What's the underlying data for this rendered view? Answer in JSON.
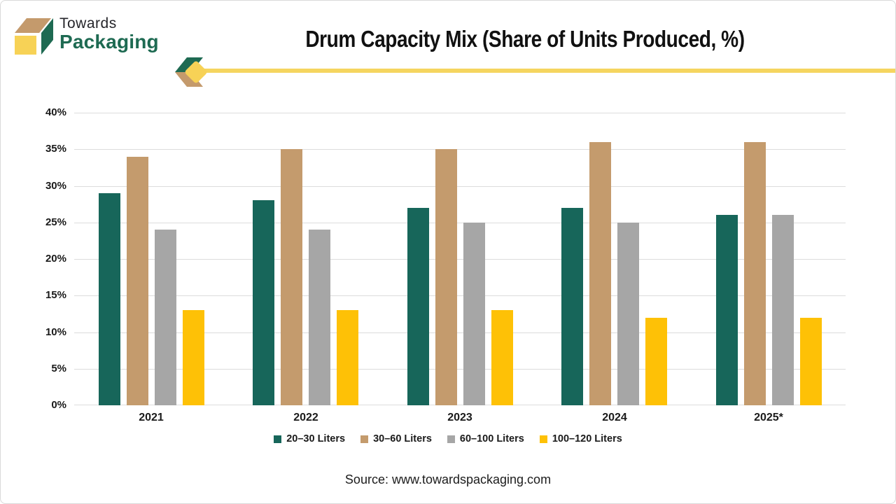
{
  "brand": {
    "line1": "Towards",
    "line2": "Packaging"
  },
  "header": {
    "title": "Drum Capacity Mix (Share of Units Produced, %)"
  },
  "footer": {
    "source": "Source: www.towardspackaging.com"
  },
  "colors": {
    "brand_green": "#1E6A52",
    "brand_tan": "#C49A6C",
    "brand_yellow": "#F7D256",
    "rule_yellow": "#F5D55F",
    "axis_text": "#1a1a1a",
    "gridline": "#dcdcdc"
  },
  "chart_data": {
    "type": "bar",
    "title": "Drum Capacity Mix (Share of Units Produced, %)",
    "categories": [
      "2021",
      "2022",
      "2023",
      "2024",
      "2025*"
    ],
    "series": [
      {
        "name": "20–30 Liters",
        "color": "#17665A",
        "values": [
          29,
          28,
          27,
          27,
          26
        ]
      },
      {
        "name": "30–60 Liters",
        "color": "#C49B6D",
        "values": [
          34,
          35,
          35,
          36,
          36
        ]
      },
      {
        "name": "60–100 Liters",
        "color": "#A6A6A6",
        "values": [
          24,
          24,
          25,
          25,
          26
        ]
      },
      {
        "name": "100–120 Liters",
        "color": "#FEC106",
        "values": [
          13,
          13,
          13,
          12,
          12
        ]
      }
    ],
    "xlabel": "",
    "ylabel": "",
    "ylim": [
      0,
      40
    ],
    "ytick_step": 5,
    "ytick_suffix": "%",
    "grid": true,
    "legend_position": "bottom"
  }
}
